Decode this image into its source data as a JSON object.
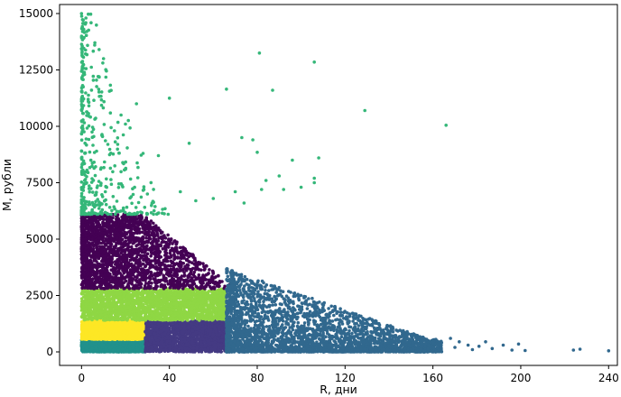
{
  "chart_data": {
    "type": "scatter",
    "title": "",
    "xlabel": "R, дни",
    "ylabel": "M, рубли",
    "xlim": [
      -10,
      244
    ],
    "ylim": [
      -600,
      15400
    ],
    "xticks": [
      0,
      40,
      80,
      120,
      160,
      200,
      240
    ],
    "yticks": [
      0,
      2500,
      5000,
      7500,
      10000,
      12500,
      15000
    ],
    "grid": false,
    "legend": "none",
    "clusters": [
      {
        "color": "#21918c",
        "r_range": [
          0,
          29
        ],
        "m_range": [
          0,
          550
        ],
        "approx_points": 1800
      },
      {
        "color": "#fde725",
        "r_range": [
          0,
          29
        ],
        "m_range": [
          550,
          1400
        ],
        "approx_points": 1800
      },
      {
        "color": "#443a83",
        "r_range": [
          29,
          66
        ],
        "m_range": [
          0,
          1400
        ],
        "approx_points": 1800
      },
      {
        "color": "#8fd744",
        "r_range": [
          0,
          66
        ],
        "m_range": [
          1400,
          2800
        ],
        "approx_points": 2200
      },
      {
        "color": "#440154",
        "r_range": [
          0,
          70
        ],
        "m_range": [
          2800,
          6100
        ],
        "approx_points": 2400
      },
      {
        "color": "#31688e",
        "r_range": [
          66,
          164
        ],
        "m_range": [
          0,
          3700
        ],
        "approx_points": 3000
      },
      {
        "color": "#35b779",
        "r_range": [
          0,
          40
        ],
        "m_range": [
          6100,
          15000
        ],
        "approx_points": 450
      }
    ],
    "sparse_points": {
      "color": "#35b779",
      "points": [
        [
          0,
          15000
        ],
        [
          2,
          14800
        ],
        [
          6,
          13600
        ],
        [
          1,
          14300
        ],
        [
          10,
          13000
        ],
        [
          8,
          12200
        ],
        [
          20,
          10100
        ],
        [
          40,
          11250
        ],
        [
          49,
          9250
        ],
        [
          66,
          11650
        ],
        [
          73,
          9500
        ],
        [
          78,
          9400
        ],
        [
          80,
          8850
        ],
        [
          81,
          13250
        ],
        [
          82,
          7200
        ],
        [
          87,
          11600
        ],
        [
          90,
          7800
        ],
        [
          96,
          8500
        ],
        [
          106,
          12850
        ],
        [
          108,
          8600
        ],
        [
          106,
          7500
        ],
        [
          129,
          10700
        ],
        [
          166,
          10050
        ],
        [
          30,
          7000
        ],
        [
          35,
          8700
        ],
        [
          45,
          7100
        ],
        [
          52,
          6700
        ],
        [
          60,
          6800
        ],
        [
          70,
          7100
        ],
        [
          74,
          6600
        ],
        [
          84,
          7600
        ],
        [
          92,
          7200
        ],
        [
          100,
          7300
        ],
        [
          106,
          7700
        ],
        [
          25,
          11000
        ],
        [
          28,
          8800
        ],
        [
          18,
          10500
        ],
        [
          15,
          9800
        ],
        [
          12,
          9200
        ]
      ]
    },
    "tail_points": {
      "color": "#31688e",
      "points": [
        [
          168,
          600
        ],
        [
          170,
          200
        ],
        [
          172,
          450
        ],
        [
          176,
          300
        ],
        [
          178,
          100
        ],
        [
          181,
          250
        ],
        [
          184,
          450
        ],
        [
          187,
          150
        ],
        [
          192,
          300
        ],
        [
          196,
          80
        ],
        [
          199,
          350
        ],
        [
          202,
          60
        ],
        [
          224,
          80
        ],
        [
          227,
          120
        ],
        [
          240,
          50
        ]
      ]
    }
  }
}
